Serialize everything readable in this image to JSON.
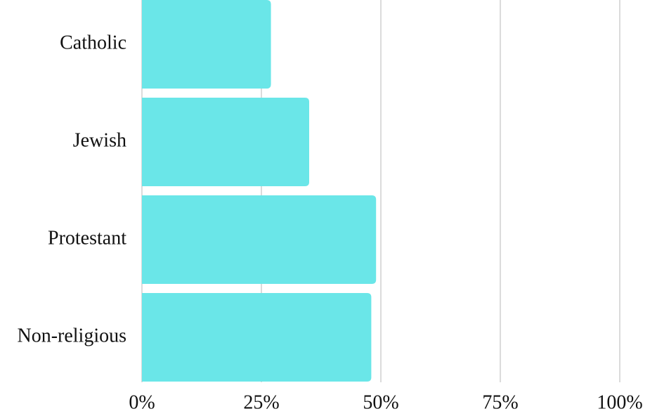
{
  "chart_data": {
    "type": "bar",
    "orientation": "horizontal",
    "categories": [
      "Catholic",
      "Jewish",
      "Protestant",
      "Non-religious"
    ],
    "values": [
      27,
      35,
      49,
      48
    ],
    "color": "#6ae6e8",
    "xlim": [
      0,
      100
    ],
    "xticks": [
      {
        "value": 0,
        "label": "0%"
      },
      {
        "value": 25,
        "label": "25%"
      },
      {
        "value": 50,
        "label": "50%"
      },
      {
        "value": 75,
        "label": "75%"
      },
      {
        "value": 100,
        "label": "100%"
      }
    ],
    "grid": true
  }
}
